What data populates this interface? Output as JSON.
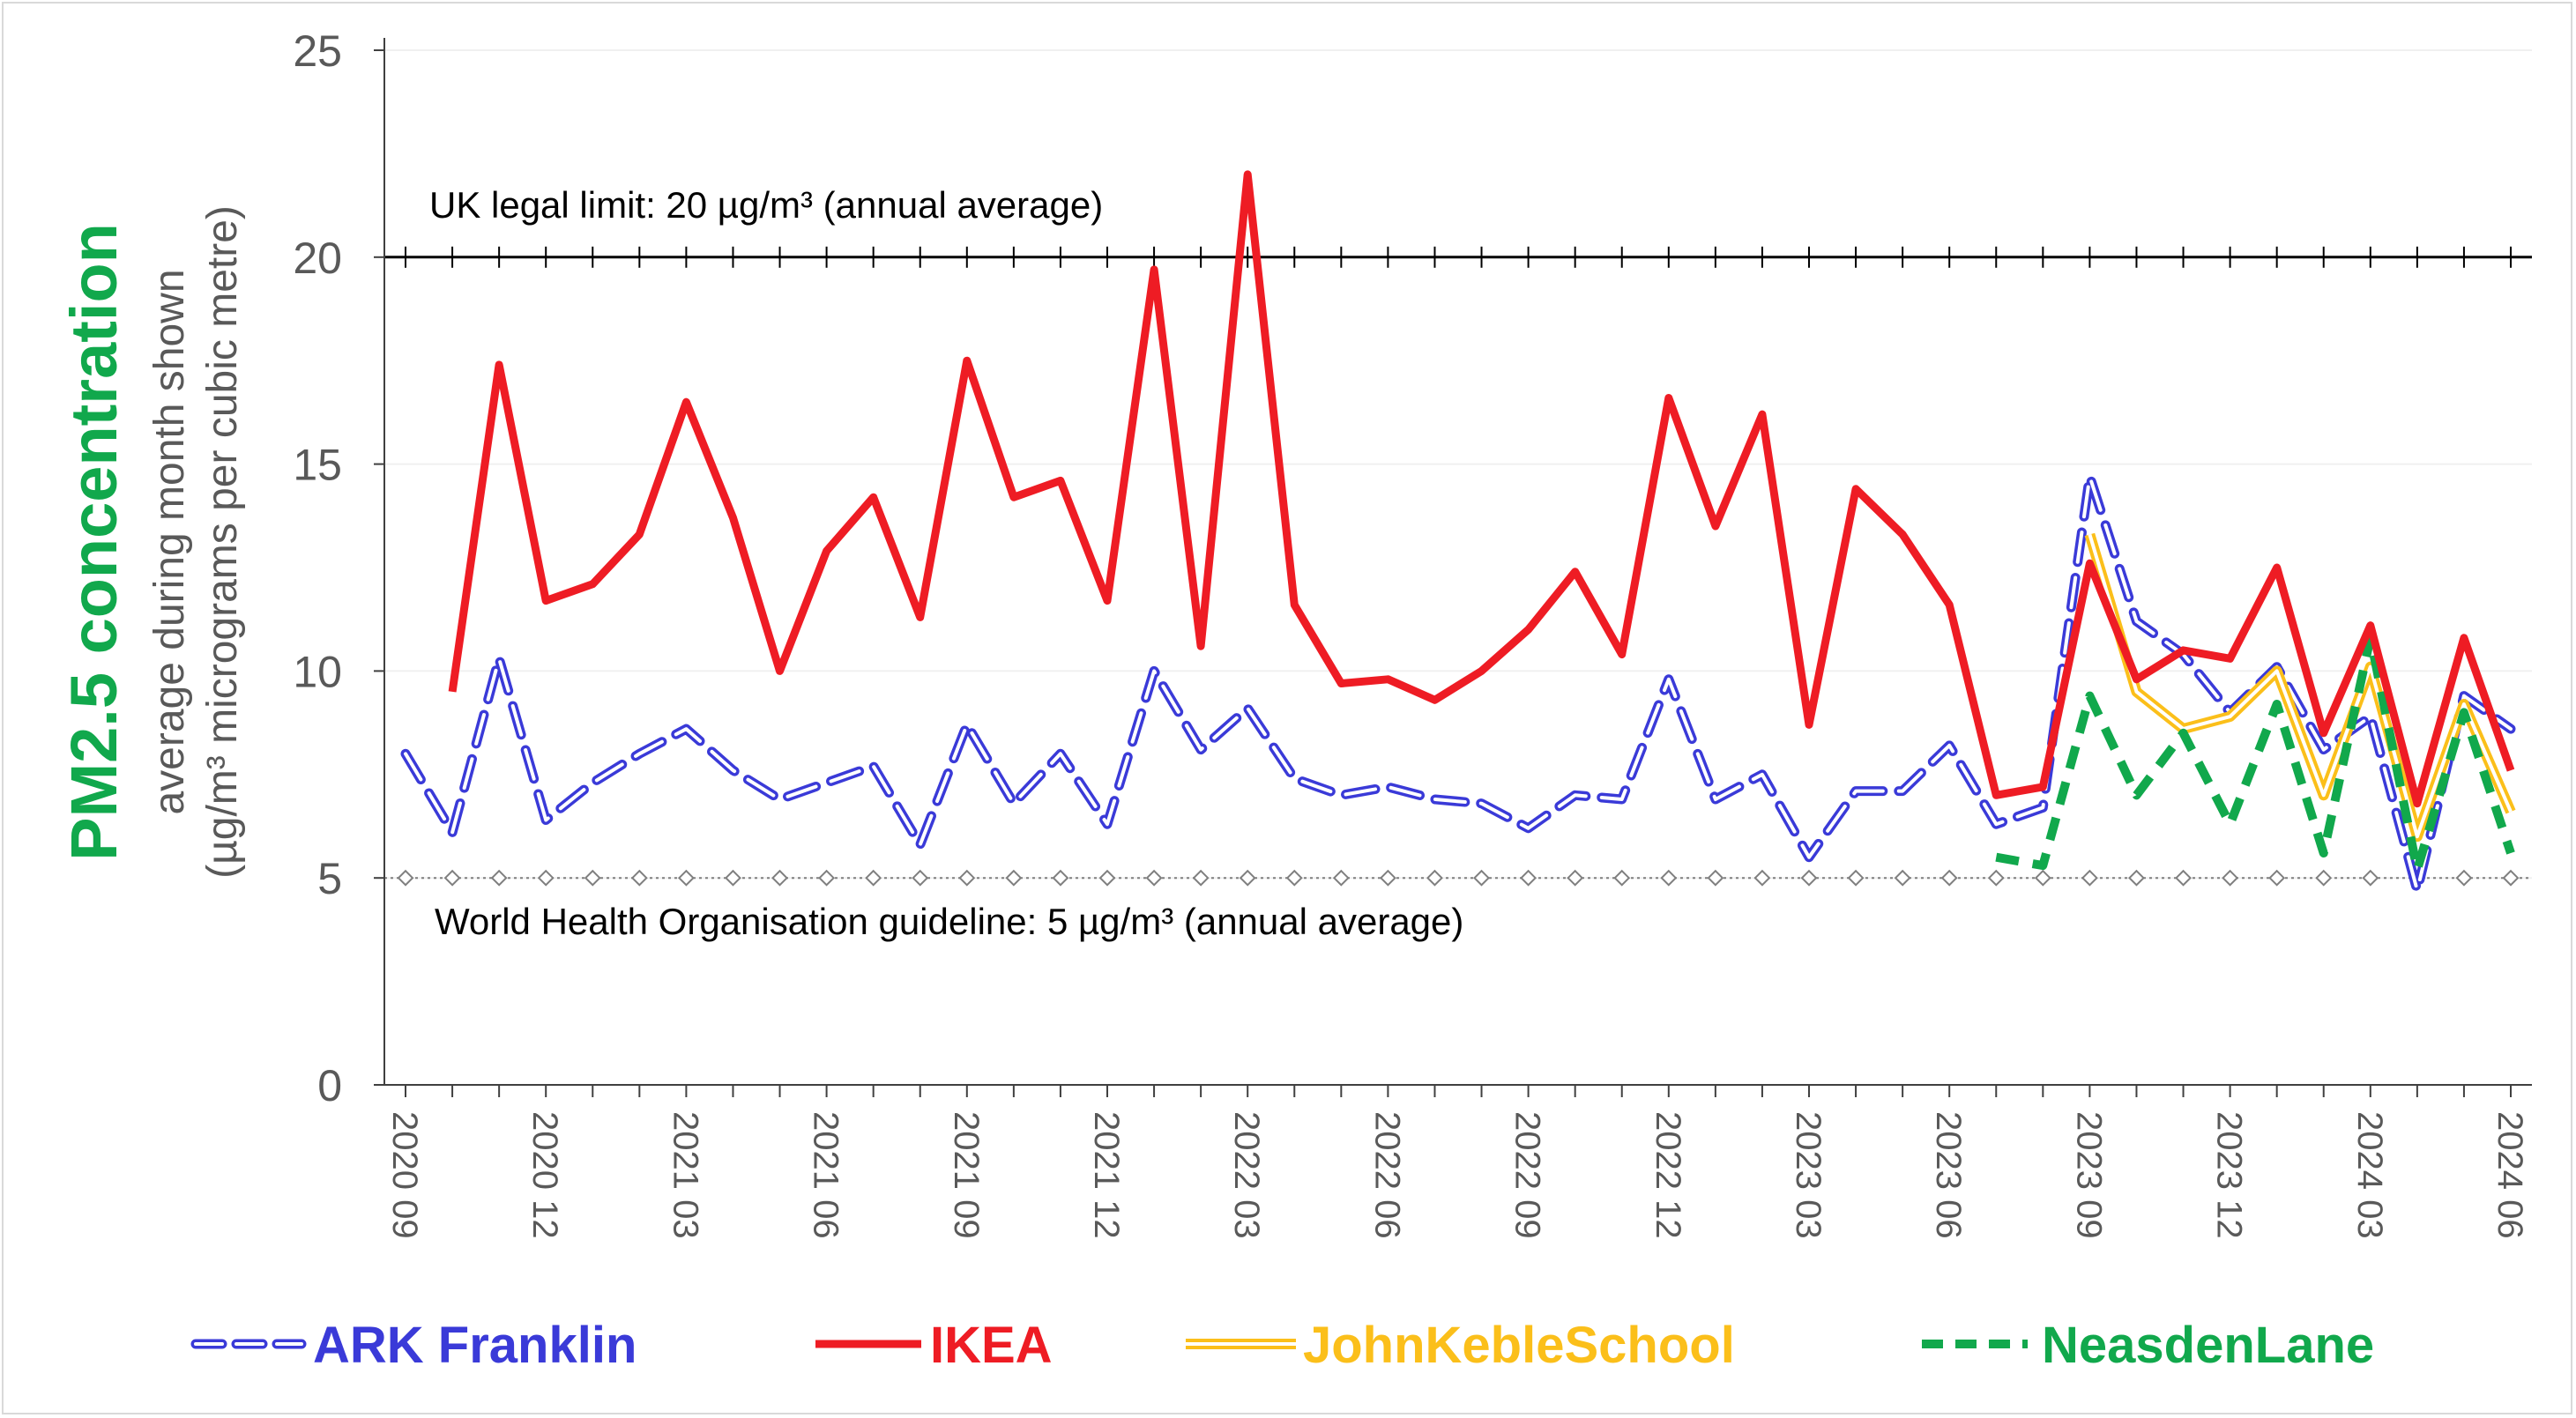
{
  "chart_data": {
    "type": "line",
    "title": "PM2.5 concentration",
    "ylabel_line1": "average during month shown",
    "ylabel_line2": "(µg/m³ micrograms per cubic metre)",
    "ylim": [
      0,
      25
    ],
    "yticks": [
      0,
      5,
      10,
      15,
      20,
      25
    ],
    "x_tick_labels": [
      "2020 09",
      "2020 12",
      "2021 03",
      "2021 06",
      "2021 09",
      "2021 12",
      "2022 03",
      "2022 06",
      "2022 09",
      "2022 12",
      "2023 03",
      "2023 06",
      "2023 09",
      "2023 12",
      "2024 03",
      "2024 06"
    ],
    "months_count": 46,
    "reference_lines": [
      {
        "label": "UK legal limit: 20 µg/m³ (annual average)",
        "value": 20,
        "color": "#000000"
      },
      {
        "label": "World Health Organisation guideline: 5 µg/m³ (annual average)",
        "value": 5,
        "color": "#7f7f7f"
      }
    ],
    "series": [
      {
        "name": "ARK Franklin",
        "color": "#3a3ad8",
        "style": "dashed-double",
        "values": [
          8.0,
          6.1,
          10.3,
          6.4,
          7.3,
          8.0,
          8.6,
          7.6,
          6.9,
          7.3,
          7.7,
          5.8,
          8.7,
          6.8,
          8.0,
          6.3,
          10.0,
          8.1,
          9.1,
          7.4,
          7.0,
          7.2,
          6.9,
          6.8,
          6.2,
          7.0,
          6.9,
          9.8,
          6.9,
          7.5,
          5.5,
          7.1,
          7.1,
          8.2,
          6.3,
          6.7,
          14.7,
          11.2,
          10.4,
          9.0,
          10.1,
          8.1,
          8.9,
          4.7,
          9.4,
          8.6
        ]
      },
      {
        "name": "IKEA",
        "color": "#ee1c24",
        "style": "solid",
        "values": [
          null,
          9.5,
          17.4,
          11.7,
          12.1,
          13.3,
          16.5,
          13.7,
          10.0,
          12.9,
          14.2,
          11.3,
          17.5,
          14.2,
          14.6,
          11.7,
          19.7,
          10.6,
          22.0,
          11.6,
          9.7,
          9.8,
          9.3,
          10.0,
          11.0,
          12.4,
          10.4,
          16.6,
          13.5,
          16.2,
          8.7,
          14.4,
          13.3,
          11.6,
          7.0,
          7.2,
          12.6,
          9.8,
          10.5,
          10.3,
          12.5,
          8.5,
          11.1,
          6.8,
          10.8,
          7.6
        ]
      },
      {
        "name": "JohnKebleSchool",
        "color": "#fbbf1a",
        "style": "double",
        "values": [
          null,
          null,
          null,
          null,
          null,
          null,
          null,
          null,
          null,
          null,
          null,
          null,
          null,
          null,
          null,
          null,
          null,
          null,
          null,
          null,
          null,
          null,
          null,
          null,
          null,
          null,
          null,
          null,
          null,
          null,
          null,
          null,
          null,
          null,
          null,
          null,
          13.3,
          9.5,
          8.6,
          8.9,
          10.0,
          7.0,
          10.1,
          6.0,
          9.2,
          6.6
        ]
      },
      {
        "name": "NeasdenLane",
        "color": "#11a84c",
        "style": "dashed",
        "values": [
          null,
          null,
          null,
          null,
          null,
          null,
          null,
          null,
          null,
          null,
          null,
          null,
          null,
          null,
          null,
          null,
          null,
          null,
          null,
          null,
          null,
          null,
          null,
          null,
          null,
          null,
          null,
          null,
          null,
          null,
          null,
          null,
          null,
          null,
          5.5,
          5.3,
          9.4,
          7.0,
          8.5,
          6.3,
          9.2,
          5.6,
          10.8,
          5.2,
          9.0,
          5.6
        ]
      }
    ]
  }
}
